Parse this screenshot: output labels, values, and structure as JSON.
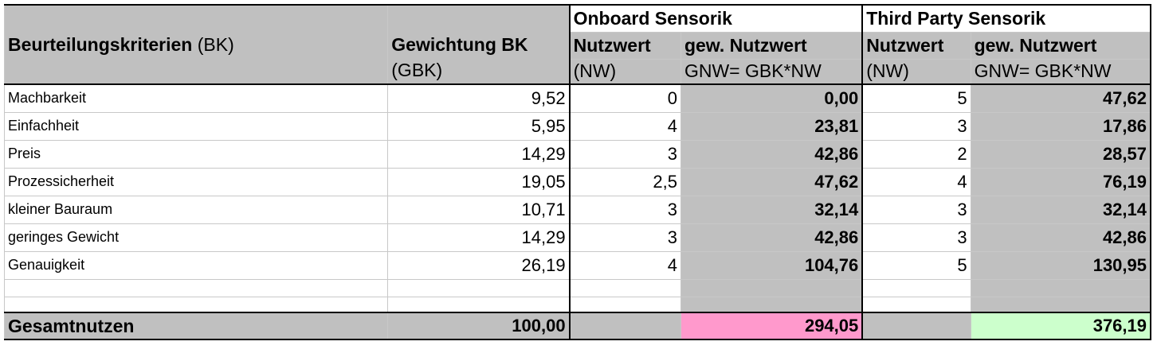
{
  "headers": {
    "criteria_bold": "Beurteilungskriterien",
    "criteria_suffix": " (BK)",
    "weight_title": "Gewichtung BK",
    "weight_sub": "(GBK)",
    "group_onboard": "Onboard Sensorik",
    "group_third": "Third Party Sensorik",
    "nw_title": "Nutzwert",
    "nw_sub": "(NW)",
    "gnw_title": "gew. Nutzwert",
    "gnw_sub": "GNW= GBK*NW"
  },
  "rows": [
    {
      "criterion": "Machbarkeit",
      "weight": "9,52",
      "onboard_nw": "0",
      "onboard_gnw": "0,00",
      "third_nw": "5",
      "third_gnw": "47,62"
    },
    {
      "criterion": "Einfachheit",
      "weight": "5,95",
      "onboard_nw": "4",
      "onboard_gnw": "23,81",
      "third_nw": "3",
      "third_gnw": "17,86"
    },
    {
      "criterion": "Preis",
      "weight": "14,29",
      "onboard_nw": "3",
      "onboard_gnw": "42,86",
      "third_nw": "2",
      "third_gnw": "28,57"
    },
    {
      "criterion": "Prozessicherheit",
      "weight": "19,05",
      "onboard_nw": "2,5",
      "onboard_gnw": "47,62",
      "third_nw": "4",
      "third_gnw": "76,19"
    },
    {
      "criterion": "kleiner Bauraum",
      "weight": "10,71",
      "onboard_nw": "3",
      "onboard_gnw": "32,14",
      "third_nw": "3",
      "third_gnw": "32,14"
    },
    {
      "criterion": "geringes Gewicht",
      "weight": "14,29",
      "onboard_nw": "3",
      "onboard_gnw": "42,86",
      "third_nw": "3",
      "third_gnw": "42,86"
    },
    {
      "criterion": "Genauigkeit",
      "weight": "26,19",
      "onboard_nw": "4",
      "onboard_gnw": "104,76",
      "third_nw": "5",
      "third_gnw": "130,95"
    }
  ],
  "total": {
    "label": "Gesamtnutzen",
    "weight": "100,00",
    "onboard_gnw": "294,05",
    "third_gnw": "376,19"
  },
  "colors": {
    "header_grey": "#c0c0c0",
    "onboard_total": "#ff99cc",
    "third_total": "#ccffcc"
  }
}
